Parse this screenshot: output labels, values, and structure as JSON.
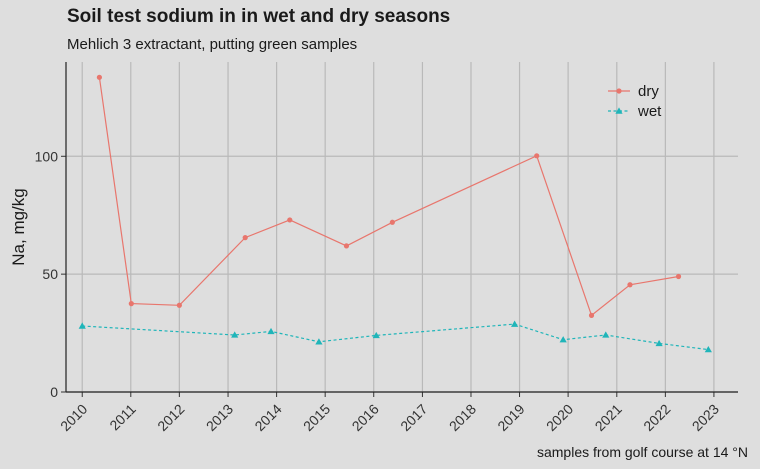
{
  "chart_data": {
    "type": "line",
    "title": "Soil test sodium in in wet and dry seasons",
    "subtitle": "Mehlich 3 extractant, putting green samples",
    "ylabel": "Na, mg/kg",
    "xlabel": "",
    "caption": "samples from golf course at 14 °N",
    "x_ticks": [
      "2010",
      "2011",
      "2012",
      "2013",
      "2014",
      "2015",
      "2016",
      "2017",
      "2018",
      "2019",
      "2020",
      "2021",
      "2022",
      "2023"
    ],
    "y_ticks": [
      0,
      50,
      100
    ],
    "xlim": [
      "2009-09-01",
      "2023-07-01"
    ],
    "ylim": [
      0,
      140
    ],
    "grid": true,
    "legend_position": "top-right",
    "series": [
      {
        "name": "dry",
        "color": "#e8766d",
        "line_style": "solid",
        "marker": "circle",
        "points": [
          {
            "x": "2010-05-10",
            "y": 133.5
          },
          {
            "x": "2011-01-05",
            "y": 37.5
          },
          {
            "x": "2012-01-01",
            "y": 36.8
          },
          {
            "x": "2013-05-10",
            "y": 65.5
          },
          {
            "x": "2014-04-10",
            "y": 73.0
          },
          {
            "x": "2015-06-10",
            "y": 62.0
          },
          {
            "x": "2016-05-20",
            "y": 72.0
          },
          {
            "x": "2019-05-10",
            "y": 100.2
          },
          {
            "x": "2020-06-25",
            "y": 32.5
          },
          {
            "x": "2021-04-10",
            "y": 45.5
          },
          {
            "x": "2022-04-10",
            "y": 49.0
          }
        ]
      },
      {
        "name": "wet",
        "color": "#1fb5b9",
        "line_style": "dashed",
        "marker": "triangle",
        "points": [
          {
            "x": "2010-01-01",
            "y": 28.0
          },
          {
            "x": "2013-02-20",
            "y": 24.2
          },
          {
            "x": "2013-11-20",
            "y": 25.7
          },
          {
            "x": "2014-11-15",
            "y": 21.3
          },
          {
            "x": "2016-01-20",
            "y": 24.0
          },
          {
            "x": "2018-11-25",
            "y": 28.8
          },
          {
            "x": "2019-11-25",
            "y": 22.2
          },
          {
            "x": "2020-10-10",
            "y": 24.2
          },
          {
            "x": "2021-11-15",
            "y": 20.6
          },
          {
            "x": "2022-11-20",
            "y": 18.0
          }
        ]
      }
    ]
  }
}
